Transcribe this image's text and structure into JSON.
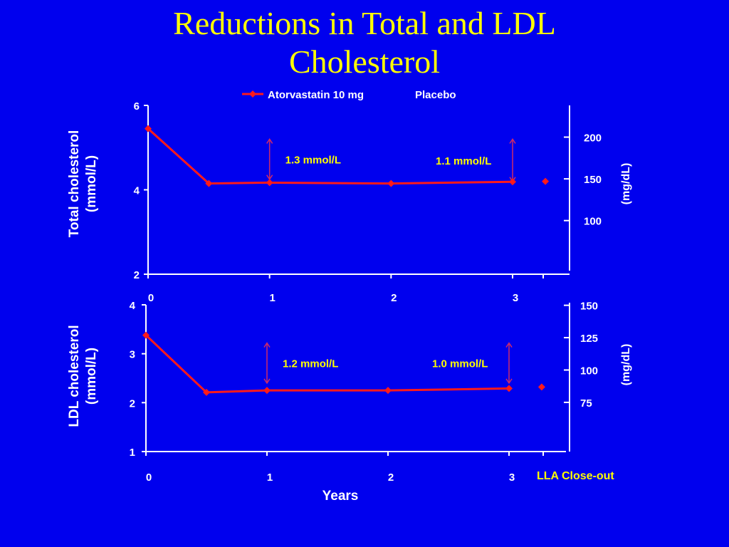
{
  "slide": {
    "title_line1": "Reductions in Total and LDL",
    "title_line2": "Cholesterol"
  },
  "colors": {
    "background": "#0000ee",
    "title": "#ffff00",
    "series": "#ff1a1a",
    "axis": "#ffffff",
    "text": "#ffffff",
    "annotation": "#ffff00",
    "closeout_label": "#ffff00"
  },
  "legend": {
    "placement": "top-center",
    "entries": [
      "Atorvastatin 10 mg",
      "Placebo"
    ]
  },
  "chart_data": [
    {
      "type": "line",
      "panel": "top",
      "ylabel_lines": [
        "Total cholesterol",
        "(mmol/L)"
      ],
      "y2label": "(mg/dL)",
      "xlabel": "",
      "ylim": [
        2,
        6
      ],
      "y_ticks": [
        2,
        4,
        6
      ],
      "y2_ticks": [
        100,
        150,
        200
      ],
      "x_ticks": [
        0,
        1,
        2,
        3
      ],
      "xlim": [
        0,
        3.45
      ],
      "grid": false,
      "series": [
        {
          "name": "Atorvastatin 10 mg",
          "x": [
            0,
            0.5,
            1,
            2,
            3
          ],
          "y": [
            5.45,
            4.15,
            4.17,
            4.15,
            4.19
          ]
        }
      ],
      "closeout_point": {
        "x": 3.27,
        "y": 4.2
      },
      "annotations": [
        {
          "text": "1.3 mmol/L",
          "x": 1,
          "y_top": 5.2,
          "y_bottom": 4.25
        },
        {
          "text": "1.1 mmol/L",
          "x": 3,
          "y_top": 5.2,
          "y_bottom": 4.2
        }
      ]
    },
    {
      "type": "line",
      "panel": "bottom",
      "ylabel_lines": [
        "LDL cholesterol",
        "(mmol/L)"
      ],
      "y2label": "(mg/dL)",
      "xlabel": "Years",
      "ylim": [
        1,
        4
      ],
      "y_ticks": [
        1,
        2,
        3,
        4
      ],
      "y2_ticks": [
        75,
        100,
        125,
        150
      ],
      "x_ticks": [
        0,
        1,
        2,
        3
      ],
      "xlim": [
        0,
        3.45
      ],
      "closeout_label": "LLA Close-out",
      "grid": false,
      "series": [
        {
          "name": "Atorvastatin 10 mg",
          "x": [
            0,
            0.5,
            1,
            2,
            3
          ],
          "y": [
            3.38,
            2.21,
            2.25,
            2.25,
            2.29
          ]
        }
      ],
      "closeout_point": {
        "x": 3.27,
        "y": 2.32
      },
      "annotations": [
        {
          "text": "1.2 mmol/L",
          "x": 1,
          "y_top": 3.22,
          "y_bottom": 2.4
        },
        {
          "text": "1.0 mmol/L",
          "x": 3,
          "y_top": 3.22,
          "y_bottom": 2.4
        }
      ]
    }
  ]
}
